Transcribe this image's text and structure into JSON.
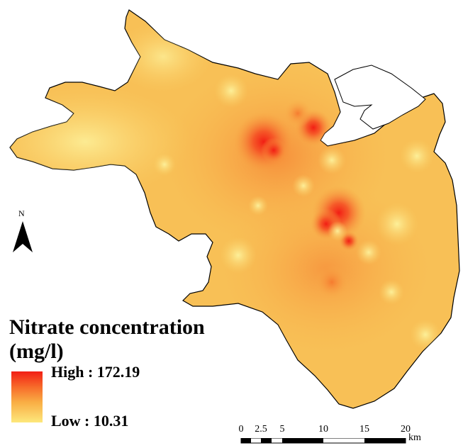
{
  "legend": {
    "title": "Nitrate concentration",
    "unit": "(mg/l)",
    "high_label": "High : 172.19",
    "low_label": "Low : 10.31",
    "high_value": 172.19,
    "low_value": 10.31,
    "colors": {
      "high": "#f21e14",
      "mid_high": "#f76a2a",
      "mid": "#f9ad44",
      "low": "#fde87c"
    }
  },
  "north_arrow": {
    "label": "N",
    "icon": "north-arrow-icon"
  },
  "scale_bar": {
    "ticks": [
      "0",
      "2.5",
      "5",
      "10",
      "15",
      "20"
    ],
    "unit": "km"
  }
}
